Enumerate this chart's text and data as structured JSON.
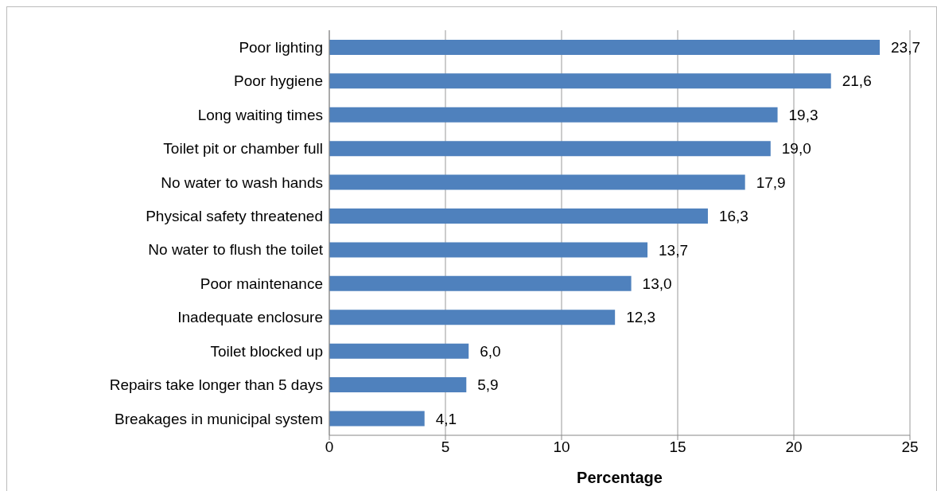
{
  "chart_data": {
    "type": "bar",
    "orientation": "horizontal",
    "xlabel": "Percentage",
    "categories": [
      "Poor lighting",
      "Poor hygiene",
      "Long waiting times",
      "Toilet pit or chamber full",
      "No water to wash hands",
      "Physical safety threatened",
      "No water to flush the toilet",
      "Poor maintenance",
      "Inadequate enclosure",
      "Toilet blocked up",
      "Repairs take longer than 5 days",
      "Breakages in municipal system"
    ],
    "values": [
      23.7,
      21.6,
      19.3,
      19.0,
      17.9,
      16.3,
      13.7,
      13.0,
      12.3,
      6.0,
      5.9,
      4.1
    ],
    "value_labels": [
      "23,7",
      "21,6",
      "19,3",
      "19,0",
      "17,9",
      "16,3",
      "13,7",
      "13,0",
      "12,3",
      "6,0",
      "5,9",
      "4,1"
    ],
    "color": "#4f81bd",
    "xlim": [
      0,
      25
    ],
    "xticks": [
      0,
      5,
      10,
      15,
      20,
      25
    ],
    "grid": "x"
  }
}
